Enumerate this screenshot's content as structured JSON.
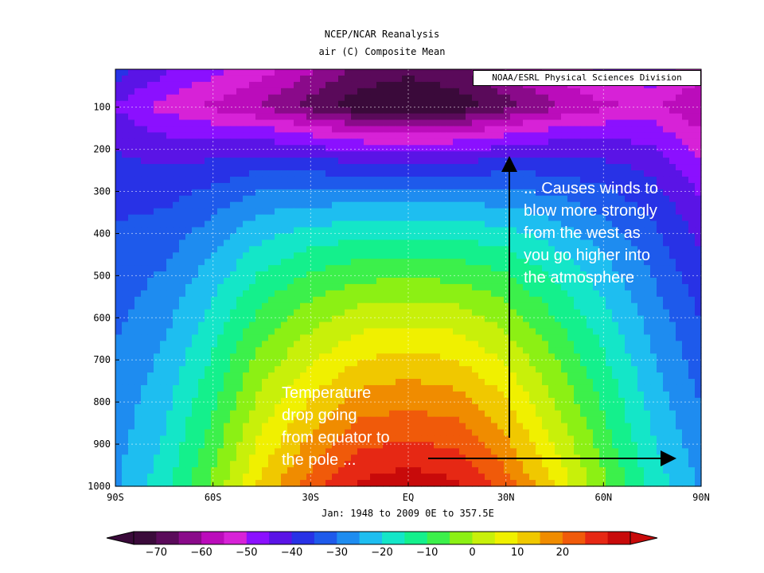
{
  "chart_data": {
    "type": "heatmap",
    "title": "NCEP/NCAR Reanalysis",
    "subtitle": "air (C) Composite Mean",
    "credit": "NOAA/ESRL Physical Sciences Division",
    "period": "Jan: 1948 to 2009 0E to 357.5E",
    "x_ticks": [
      {
        "value": -90,
        "label": "90S"
      },
      {
        "value": -60,
        "label": "60S"
      },
      {
        "value": -30,
        "label": "30S"
      },
      {
        "value": 0,
        "label": "EQ"
      },
      {
        "value": 30,
        "label": "30N"
      },
      {
        "value": 60,
        "label": "60N"
      },
      {
        "value": 90,
        "label": "90N"
      }
    ],
    "y_ticks": [
      100,
      200,
      300,
      400,
      500,
      600,
      700,
      800,
      900,
      1000
    ],
    "xlim": [
      -90,
      90
    ],
    "ylim": [
      1000,
      10
    ],
    "colorbar_ticks": [
      -70,
      -60,
      -50,
      -40,
      -30,
      -20,
      -10,
      0,
      10,
      20
    ],
    "colorbar_colors": [
      "#3a0a3a",
      "#5a0a5a",
      "#8a0a8a",
      "#bb0cbb",
      "#d722d7",
      "#8b10ff",
      "#5a14e6",
      "#2832e6",
      "#1e5aeb",
      "#1e8cf0",
      "#1ebef0",
      "#14e6c8",
      "#14f08c",
      "#3cf04b",
      "#8cf014",
      "#c8f00a",
      "#f0f000",
      "#f0c800",
      "#f08c00",
      "#f05a0a",
      "#e62814",
      "#c80a0a"
    ],
    "grid": true,
    "temperature_profile": {
      "latitudes": [
        -90,
        -75,
        -60,
        -45,
        -30,
        -15,
        0,
        15,
        30,
        45,
        60,
        75,
        90
      ],
      "surface_1000": [
        -30,
        -22,
        -10,
        4,
        14,
        22,
        24,
        22,
        14,
        2,
        -10,
        -22,
        -30
      ],
      "tropopause_100": [
        -48,
        -54,
        -58,
        -62,
        -68,
        -74,
        -76,
        -74,
        -68,
        -62,
        -58,
        -56,
        -62
      ]
    }
  },
  "annotations": {
    "winds": "... Causes winds to\nblow more strongly\nfrom the west as\nyou go higher into\nthe atmosphere",
    "temperature": "Temperature\ndrop going\nfrom equator to\nthe pole ..."
  }
}
